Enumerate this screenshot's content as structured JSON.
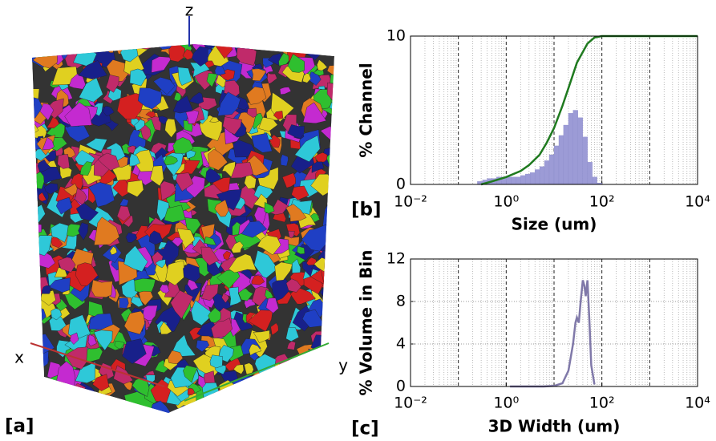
{
  "panel_a": {
    "label": "[a]",
    "axis_x": "x",
    "axis_y": "y",
    "axis_z": "z"
  },
  "chart_data": [
    {
      "type": "histogram",
      "panel_label": "[b]",
      "xlabel": "Size (um)",
      "ylabel": "% Channel",
      "xscale": "log",
      "xlim": [
        0.01,
        10000
      ],
      "xticks": [
        {
          "value": 0.01,
          "label": "10⁻²"
        },
        {
          "value": 1,
          "label": "10⁰"
        },
        {
          "value": 100,
          "label": "10²"
        },
        {
          "value": 10000,
          "label": "10⁴"
        }
      ],
      "grid_xticks": [
        0.1,
        1,
        10,
        100,
        1000
      ],
      "ylim": [
        0,
        10
      ],
      "yticks": [
        0,
        10
      ],
      "grid": true,
      "minor_grid": true,
      "color": "#9c9bd6",
      "bins": [
        0.25,
        0.32,
        0.4,
        0.5,
        0.63,
        0.79,
        1,
        1.26,
        1.58,
        2,
        2.51,
        3.16,
        3.98,
        5.01,
        6.31,
        7.94,
        10,
        12.6,
        15.8,
        20,
        25.1,
        31.6,
        39.8,
        50.1,
        63.1,
        79.4,
        100
      ],
      "values": [
        0.2,
        0.3,
        0.4,
        0.4,
        0.5,
        0.5,
        0.5,
        0.5,
        0.5,
        0.6,
        0.7,
        0.8,
        1,
        1.2,
        1.6,
        2,
        2.6,
        3.3,
        4,
        4.8,
        5,
        4.5,
        3.2,
        1.5,
        0.5,
        0.1
      ],
      "line": {
        "color": "#1f7a1f",
        "x": [
          0.3,
          0.5,
          1,
          2,
          3,
          5,
          7,
          10,
          15,
          20,
          30,
          50,
          70,
          100,
          200,
          1000,
          10000
        ],
        "values": [
          0,
          0.2,
          0.5,
          0.9,
          1.3,
          2,
          2.8,
          3.8,
          5.3,
          6.5,
          8.2,
          9.5,
          9.9,
          10,
          10,
          10,
          10
        ]
      }
    },
    {
      "type": "line",
      "panel_label": "[c]",
      "xlabel": "3D Width (um)",
      "ylabel": "% Volume in Bin",
      "xscale": "log",
      "xlim": [
        0.01,
        10000
      ],
      "xticks": [
        {
          "value": 0.01,
          "label": "10⁻²"
        },
        {
          "value": 1,
          "label": "10⁰"
        },
        {
          "value": 100,
          "label": "10²"
        },
        {
          "value": 10000,
          "label": "10⁴"
        }
      ],
      "grid_xticks": [
        0.1,
        1,
        10,
        100,
        1000
      ],
      "ylim": [
        0,
        12
      ],
      "yticks": [
        0,
        4,
        8,
        12
      ],
      "grid": true,
      "minor_grid": true,
      "color": "#8079a9",
      "x": [
        1.2,
        2,
        4,
        6,
        10,
        15,
        20,
        25,
        28,
        30,
        33,
        36,
        40,
        43,
        46,
        50,
        55,
        60,
        70
      ],
      "values": [
        0,
        0,
        0,
        0,
        0.05,
        0.3,
        1.5,
        4,
        6,
        6.5,
        6,
        8,
        10,
        9.5,
        8.5,
        10,
        6,
        2,
        0.2
      ]
    }
  ]
}
